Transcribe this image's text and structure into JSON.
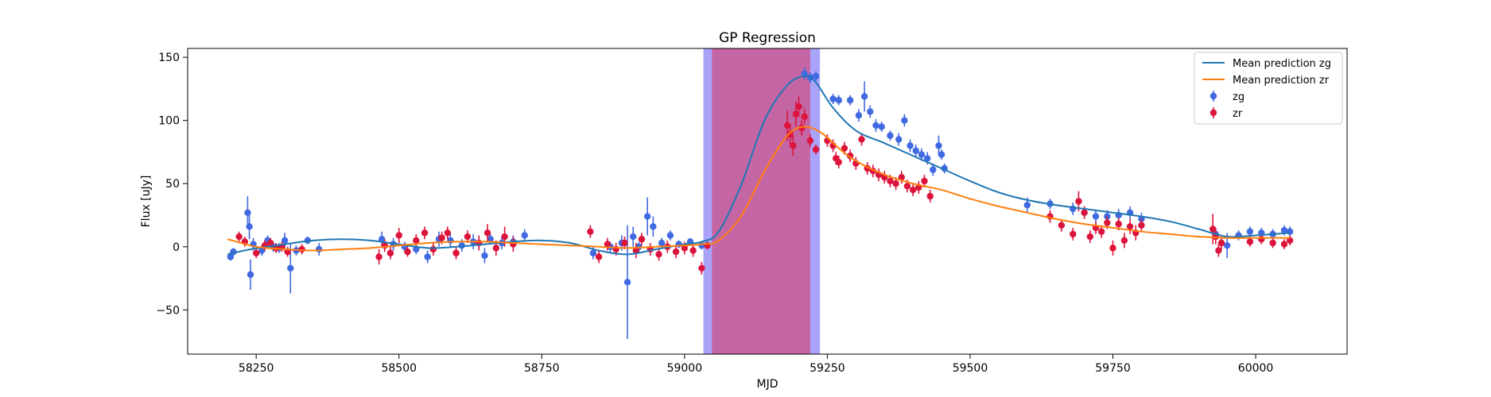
{
  "chart_data": {
    "type": "scatter",
    "title": "GP Regression",
    "xlabel": "MJD",
    "ylabel": "Flux [uJy]",
    "xlim": [
      58130,
      60160
    ],
    "ylim": [
      -85,
      157
    ],
    "xticks": [
      58250,
      58500,
      58750,
      59000,
      59250,
      59500,
      59750,
      60000
    ],
    "yticks": [
      -50,
      0,
      50,
      100,
      150
    ],
    "legend_position": "top-right",
    "colors": {
      "zg_points": "#4169e1",
      "zr_points": "#dc143c",
      "zg_mean": "#1f77b4",
      "zr_mean": "#ff7f0e",
      "band_zg": "#aaa3fa",
      "band_zr": "#c466a4"
    },
    "shaded_regions": [
      {
        "x": [
          59033,
          59237
        ],
        "color": "#aaa3fa"
      },
      {
        "x": [
          59048,
          59220
        ],
        "color": "#c466a4"
      }
    ],
    "lines": [
      {
        "name": "Mean prediction zg",
        "color": "#1f77b4",
        "x": [
          58200,
          58240,
          58300,
          58350,
          58400,
          58450,
          58500,
          58550,
          58600,
          58650,
          58700,
          58750,
          58800,
          58850,
          58900,
          58950,
          59000,
          59030,
          59060,
          59100,
          59140,
          59180,
          59210,
          59230,
          59260,
          59300,
          59350,
          59400,
          59450,
          59500,
          59550,
          59600,
          59650,
          59700,
          59750,
          59800,
          59850,
          59900,
          59950,
          60000,
          60060
        ],
        "y": [
          -6,
          -2,
          2,
          5,
          6,
          5,
          2,
          -1,
          0,
          2,
          4,
          5,
          3,
          -3,
          -6,
          -2,
          2,
          4,
          12,
          50,
          100,
          128,
          135,
          130,
          110,
          92,
          82,
          72,
          62,
          52,
          43,
          37,
          33,
          30,
          27,
          24,
          20,
          14,
          8,
          9,
          11
        ]
      },
      {
        "name": "Mean prediction zr",
        "color": "#ff7f0e",
        "x": [
          58200,
          58250,
          58300,
          58350,
          58400,
          58450,
          58500,
          58550,
          58600,
          58650,
          58700,
          58750,
          58800,
          58850,
          58900,
          58950,
          59000,
          59030,
          59060,
          59100,
          59140,
          59180,
          59210,
          59240,
          59270,
          59300,
          59350,
          59400,
          59450,
          59500,
          59550,
          59600,
          59650,
          59700,
          59750,
          59800,
          59850,
          59900,
          59950,
          60000,
          60060
        ],
        "y": [
          6,
          0,
          -2,
          -3,
          -2,
          -1,
          1,
          3,
          4,
          4,
          3,
          2,
          1,
          0,
          -1,
          0,
          1,
          2,
          5,
          25,
          60,
          88,
          95,
          90,
          78,
          68,
          57,
          50,
          45,
          38,
          32,
          27,
          22,
          18,
          15,
          12,
          10,
          8,
          7,
          7,
          7
        ]
      }
    ],
    "series": [
      {
        "name": "zg",
        "color": "#4169e1",
        "points": [
          [
            58205,
            -8,
            3
          ],
          [
            58210,
            -4,
            3
          ],
          [
            58235,
            27,
            13
          ],
          [
            58238,
            16,
            10
          ],
          [
            58240,
            -22,
            12
          ],
          [
            58245,
            2,
            5
          ],
          [
            58260,
            -3,
            4
          ],
          [
            58270,
            5,
            4
          ],
          [
            58280,
            0,
            4
          ],
          [
            58290,
            -1,
            4
          ],
          [
            58300,
            5,
            6
          ],
          [
            58310,
            -17,
            20
          ],
          [
            58320,
            -3,
            4
          ],
          [
            58340,
            5,
            3
          ],
          [
            58360,
            -2,
            5
          ],
          [
            58470,
            6,
            6
          ],
          [
            58490,
            2,
            5
          ],
          [
            58510,
            0,
            4
          ],
          [
            58530,
            -2,
            4
          ],
          [
            58550,
            -8,
            5
          ],
          [
            58570,
            6,
            6
          ],
          [
            58590,
            5,
            6
          ],
          [
            58610,
            1,
            5
          ],
          [
            58630,
            4,
            6
          ],
          [
            58650,
            -7,
            6
          ],
          [
            58660,
            6,
            4
          ],
          [
            58680,
            3,
            5
          ],
          [
            58700,
            4,
            5
          ],
          [
            58720,
            9,
            5
          ],
          [
            58840,
            -5,
            5
          ],
          [
            58870,
            0,
            4
          ],
          [
            58890,
            3,
            6
          ],
          [
            58900,
            -28,
            45
          ],
          [
            58910,
            8,
            8
          ],
          [
            58920,
            0,
            4
          ],
          [
            58935,
            24,
            15
          ],
          [
            58945,
            16,
            8
          ],
          [
            58960,
            3,
            4
          ],
          [
            58975,
            9,
            4
          ],
          [
            58990,
            2,
            3
          ],
          [
            59010,
            4,
            3
          ],
          [
            59030,
            1,
            3
          ],
          [
            59210,
            137,
            5
          ],
          [
            59220,
            134,
            4
          ],
          [
            59230,
            135,
            4
          ],
          [
            59260,
            117,
            4
          ],
          [
            59270,
            116,
            4
          ],
          [
            59290,
            116,
            4
          ],
          [
            59305,
            104,
            5
          ],
          [
            59315,
            119,
            12
          ],
          [
            59325,
            107,
            5
          ],
          [
            59335,
            96,
            5
          ],
          [
            59345,
            95,
            4
          ],
          [
            59360,
            88,
            4
          ],
          [
            59375,
            85,
            5
          ],
          [
            59385,
            100,
            5
          ],
          [
            59395,
            80,
            5
          ],
          [
            59405,
            76,
            5
          ],
          [
            59415,
            73,
            5
          ],
          [
            59425,
            70,
            5
          ],
          [
            59435,
            61,
            5
          ],
          [
            59445,
            80,
            8
          ],
          [
            59450,
            73,
            4
          ],
          [
            59455,
            62,
            4
          ],
          [
            59600,
            33,
            6
          ],
          [
            59640,
            34,
            4
          ],
          [
            59680,
            30,
            5
          ],
          [
            59700,
            27,
            5
          ],
          [
            59720,
            24,
            5
          ],
          [
            59740,
            24,
            5
          ],
          [
            59760,
            25,
            5
          ],
          [
            59780,
            27,
            5
          ],
          [
            59800,
            22,
            5
          ],
          [
            59930,
            10,
            5
          ],
          [
            59950,
            1,
            10
          ],
          [
            59970,
            9,
            4
          ],
          [
            59990,
            12,
            4
          ],
          [
            60010,
            11,
            4
          ],
          [
            60030,
            10,
            4
          ],
          [
            60050,
            13,
            4
          ],
          [
            60060,
            12,
            4
          ]
        ]
      },
      {
        "name": "zr",
        "color": "#dc143c",
        "points": [
          [
            58220,
            8,
            4
          ],
          [
            58230,
            4,
            4
          ],
          [
            58250,
            -5,
            4
          ],
          [
            58265,
            1,
            4
          ],
          [
            58275,
            3,
            4
          ],
          [
            58285,
            -1,
            4
          ],
          [
            58295,
            0,
            4
          ],
          [
            58305,
            -4,
            4
          ],
          [
            58330,
            -2,
            4
          ],
          [
            58465,
            -8,
            6
          ],
          [
            58475,
            1,
            5
          ],
          [
            58485,
            -5,
            5
          ],
          [
            58500,
            9,
            6
          ],
          [
            58515,
            -4,
            4
          ],
          [
            58530,
            5,
            5
          ],
          [
            58545,
            11,
            5
          ],
          [
            58560,
            -2,
            5
          ],
          [
            58575,
            7,
            5
          ],
          [
            58585,
            11,
            5
          ],
          [
            58600,
            -5,
            5
          ],
          [
            58620,
            8,
            5
          ],
          [
            58640,
            3,
            6
          ],
          [
            58655,
            11,
            7
          ],
          [
            58670,
            -1,
            6
          ],
          [
            58685,
            8,
            8
          ],
          [
            58700,
            2,
            6
          ],
          [
            58835,
            12,
            5
          ],
          [
            58850,
            -8,
            5
          ],
          [
            58865,
            2,
            5
          ],
          [
            58880,
            -2,
            5
          ],
          [
            58895,
            3,
            5
          ],
          [
            58915,
            -3,
            6
          ],
          [
            58925,
            6,
            5
          ],
          [
            58940,
            -2,
            5
          ],
          [
            58955,
            -6,
            5
          ],
          [
            58970,
            0,
            5
          ],
          [
            58985,
            -4,
            5
          ],
          [
            59000,
            -1,
            5
          ],
          [
            59015,
            -3,
            5
          ],
          [
            59030,
            -17,
            5
          ],
          [
            59040,
            1,
            3
          ],
          [
            59180,
            96,
            12
          ],
          [
            59185,
            89,
            8
          ],
          [
            59190,
            80,
            8
          ],
          [
            59195,
            105,
            10
          ],
          [
            59200,
            111,
            8
          ],
          [
            59205,
            94,
            6
          ],
          [
            59210,
            103,
            6
          ],
          [
            59220,
            84,
            5
          ],
          [
            59230,
            77,
            4
          ],
          [
            59250,
            84,
            5
          ],
          [
            59260,
            80,
            5
          ],
          [
            59265,
            70,
            5
          ],
          [
            59270,
            67,
            5
          ],
          [
            59280,
            78,
            5
          ],
          [
            59290,
            72,
            5
          ],
          [
            59300,
            66,
            5
          ],
          [
            59310,
            85,
            5
          ],
          [
            59320,
            62,
            5
          ],
          [
            59330,
            60,
            5
          ],
          [
            59340,
            57,
            5
          ],
          [
            59350,
            55,
            5
          ],
          [
            59360,
            52,
            5
          ],
          [
            59370,
            50,
            5
          ],
          [
            59380,
            55,
            5
          ],
          [
            59390,
            48,
            5
          ],
          [
            59400,
            45,
            5
          ],
          [
            59410,
            47,
            5
          ],
          [
            59420,
            52,
            5
          ],
          [
            59430,
            40,
            5
          ],
          [
            59640,
            24,
            5
          ],
          [
            59660,
            17,
            5
          ],
          [
            59680,
            10,
            5
          ],
          [
            59690,
            36,
            8
          ],
          [
            59700,
            27,
            5
          ],
          [
            59710,
            8,
            5
          ],
          [
            59720,
            15,
            5
          ],
          [
            59730,
            12,
            5
          ],
          [
            59740,
            19,
            5
          ],
          [
            59750,
            -1,
            6
          ],
          [
            59760,
            18,
            5
          ],
          [
            59770,
            5,
            6
          ],
          [
            59780,
            16,
            6
          ],
          [
            59790,
            11,
            6
          ],
          [
            59800,
            17,
            5
          ],
          [
            59925,
            14,
            12
          ],
          [
            59930,
            8,
            6
          ],
          [
            59935,
            -3,
            5
          ],
          [
            59940,
            3,
            5
          ],
          [
            59990,
            4,
            4
          ],
          [
            60010,
            6,
            4
          ],
          [
            60030,
            3,
            4
          ],
          [
            60050,
            2,
            4
          ],
          [
            60060,
            5,
            4
          ]
        ]
      }
    ]
  }
}
